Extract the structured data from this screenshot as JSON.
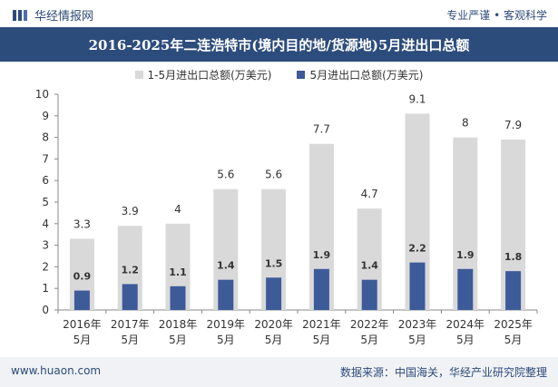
{
  "header": {
    "brand": "华经情报网",
    "tagline": "专业严谨 • 客观科学"
  },
  "chart_data": {
    "type": "bar",
    "title": "2016-2025年二连浩特市(境内目的地/货源地)5月进出口总额",
    "categories": [
      [
        "2016年",
        "5月"
      ],
      [
        "2017年",
        "5月"
      ],
      [
        "2018年",
        "5月"
      ],
      [
        "2019年",
        "5月"
      ],
      [
        "2020年",
        "5月"
      ],
      [
        "2021年",
        "5月"
      ],
      [
        "2022年",
        "5月"
      ],
      [
        "2023年",
        "5月"
      ],
      [
        "2024年",
        "5月"
      ],
      [
        "2025年",
        "5月"
      ]
    ],
    "series": [
      {
        "name": "1-5月进出口总额(万美元)",
        "color": "#d9d9d9",
        "label_color": "#333333",
        "values": [
          3.3,
          3.9,
          4,
          5.6,
          5.6,
          7.7,
          4.7,
          9.1,
          8,
          7.9
        ]
      },
      {
        "name": "5月进出口总额(万美元)",
        "color": "#3d5a99",
        "label_color": "#333333",
        "values": [
          0.9,
          1.2,
          1.1,
          1.4,
          1.5,
          1.9,
          1.4,
          2.2,
          1.9,
          1.8
        ]
      }
    ],
    "ylim": [
      0,
      10
    ],
    "yticks": [
      0,
      1,
      2,
      3,
      4,
      5,
      6,
      7,
      8,
      9,
      10
    ],
    "grid": false,
    "legend_position": "top-center"
  },
  "footer": {
    "website": "www.huaon.com",
    "source": "数据来源：中国海关，华经产业研究院整理"
  }
}
